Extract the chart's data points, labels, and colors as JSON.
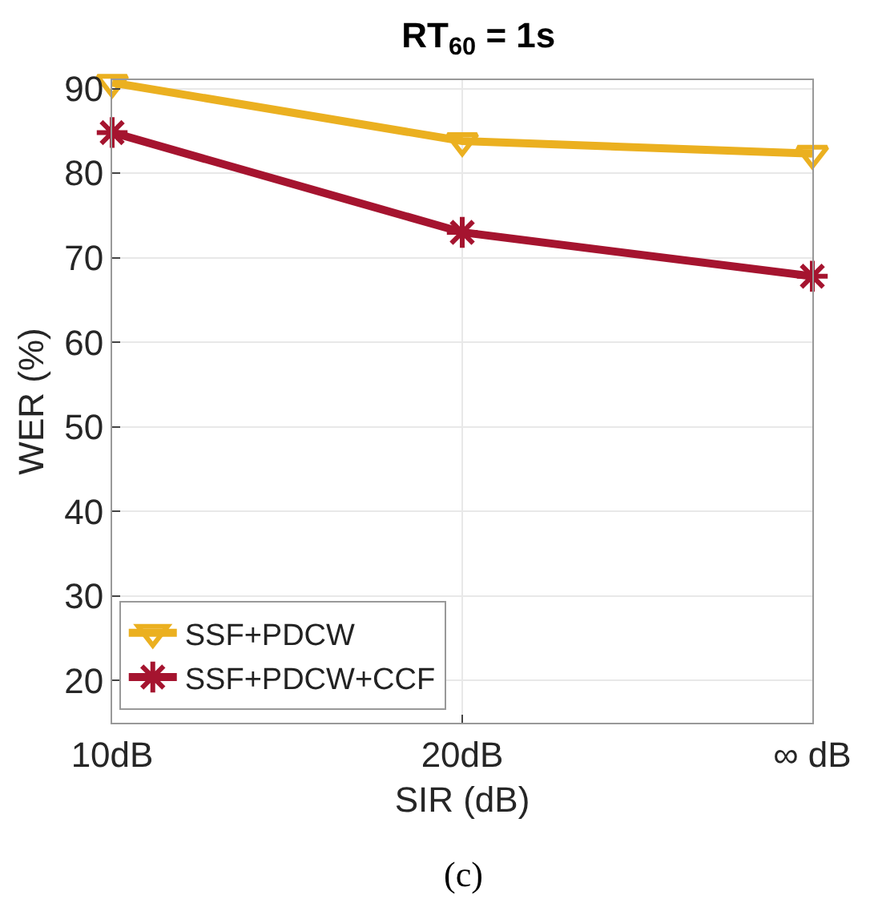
{
  "chart_data": {
    "type": "line",
    "title": "RT$_{60}$ = 1s",
    "xlabel": "SIR (dB)",
    "ylabel": "WER (%)",
    "categories": [
      "10dB",
      "20dB",
      "∞ dB"
    ],
    "series": [
      {
        "name": "SSF+PDCW",
        "color": "#ebb020",
        "values": [
          90.7,
          83.8,
          82.3
        ],
        "marker": "triangle"
      },
      {
        "name": "SSF+PDCW+CCF",
        "color": "#a5142f",
        "values": [
          84.8,
          73.0,
          67.8
        ],
        "marker": "cross"
      }
    ],
    "ylim": [
      15,
      91
    ],
    "yticks": [
      20,
      30,
      40,
      50,
      60,
      70,
      80,
      90
    ],
    "grid": true,
    "legend": "bottom left",
    "line_style": "solid",
    "annotations": [
      "(c)"
    ]
  }
}
